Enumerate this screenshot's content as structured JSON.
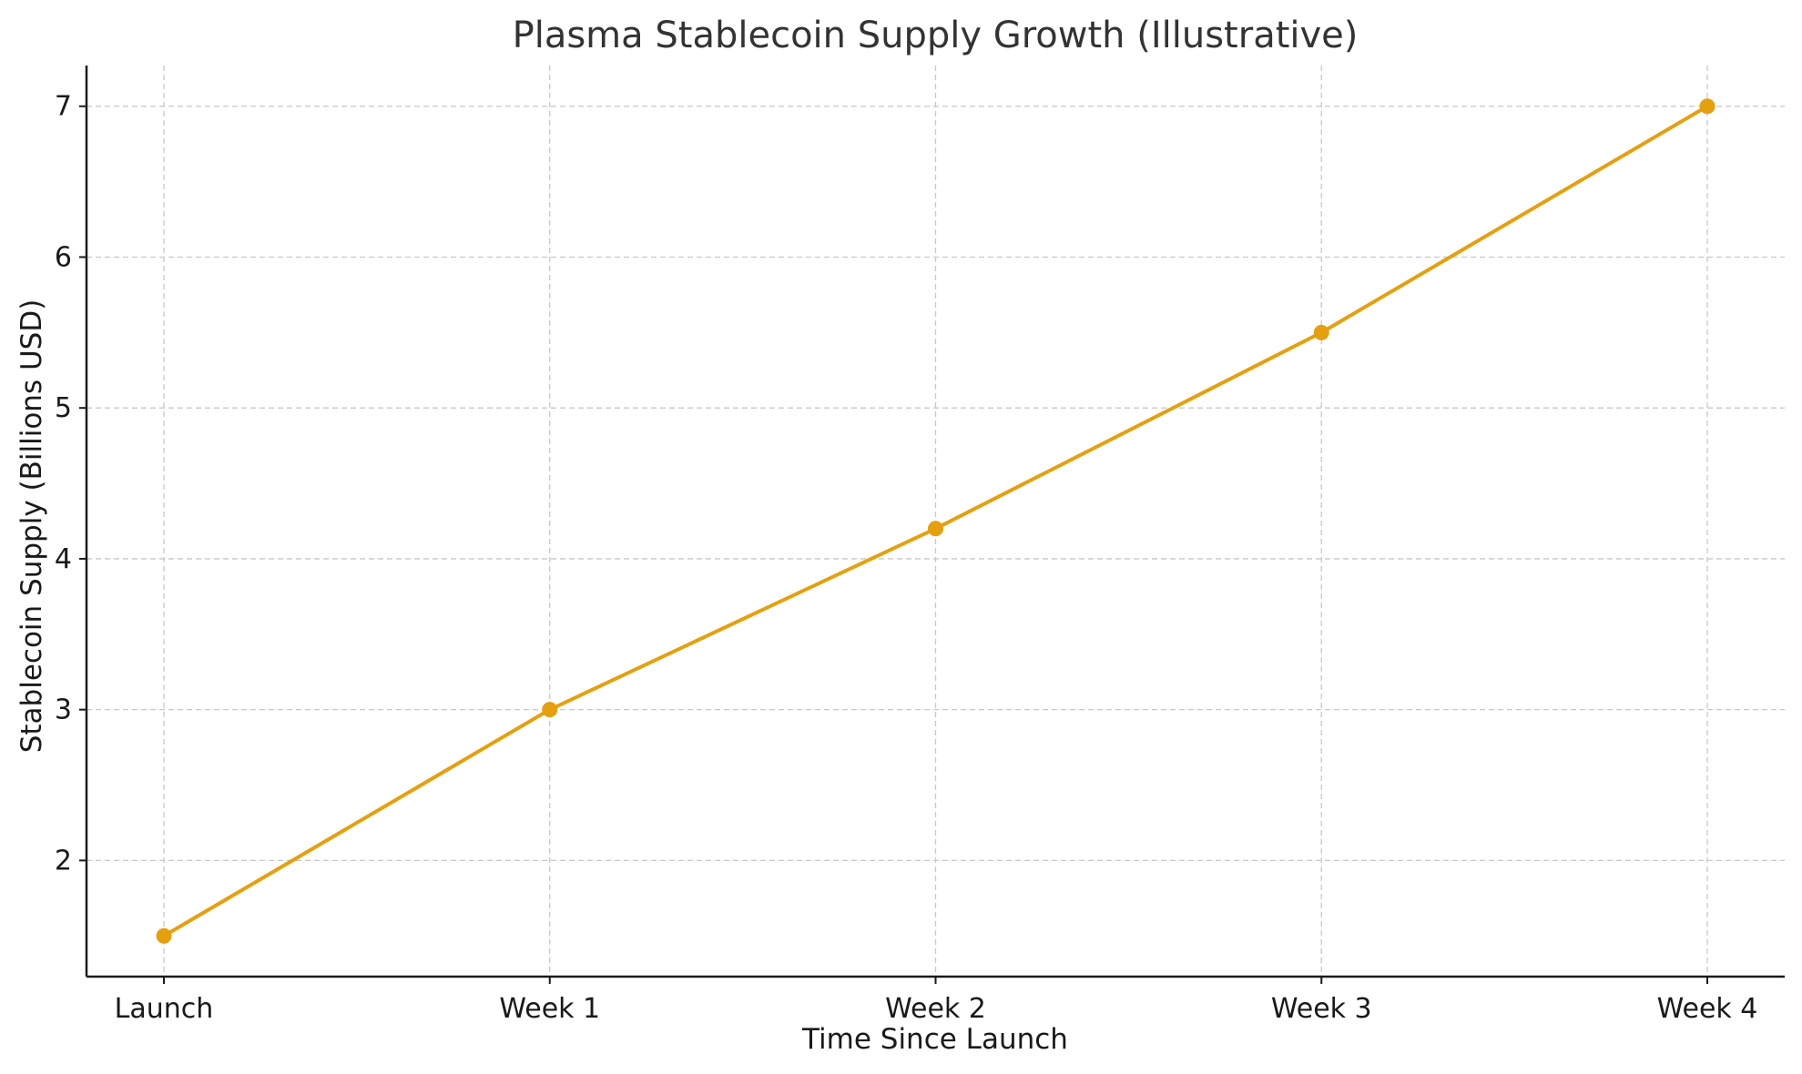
{
  "chart_data": {
    "type": "line",
    "title": "Plasma Stablecoin Supply Growth (Illustrative)",
    "xlabel": "Time Since Launch",
    "ylabel": "Stablecoin Supply (Billions USD)",
    "categories": [
      "Launch",
      "Week 1",
      "Week 2",
      "Week 3",
      "Week 4"
    ],
    "series": [
      {
        "name": "",
        "values": [
          1.5,
          3.0,
          4.2,
          5.5,
          7.0
        ]
      }
    ],
    "ylim": [
      1.23,
      7.27
    ],
    "yticks": [
      "2",
      "3",
      "4",
      "5",
      "6",
      "7"
    ],
    "grid": true,
    "legend": "none",
    "colors": {
      "line": "#e6a00e",
      "grid": "#c8c8c8",
      "axis": "#1a1a1a"
    },
    "marker": "circle"
  }
}
